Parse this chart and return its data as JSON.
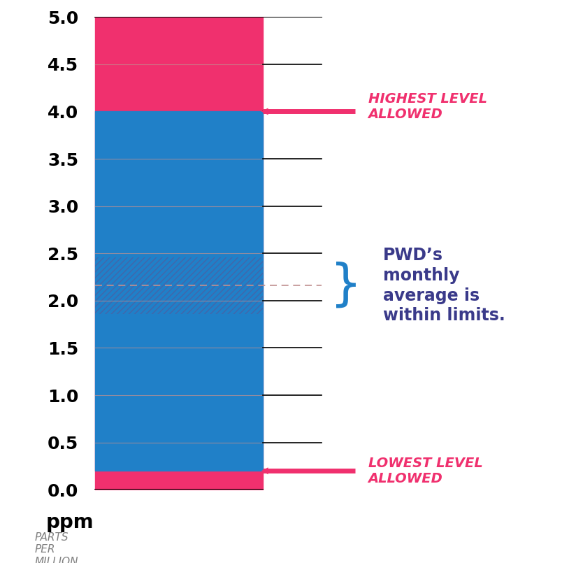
{
  "ylim": [
    0,
    5.0
  ],
  "yticks": [
    0.0,
    0.5,
    1.0,
    1.5,
    2.0,
    2.5,
    3.0,
    3.5,
    4.0,
    4.5,
    5.0
  ],
  "blue_color": "#2080c8",
  "pink_color": "#f0306e",
  "lowest_level": 0.2,
  "highest_level": 4.0,
  "pwd_low": 1.86,
  "pwd_high": 2.46,
  "dashed_line_y": 2.16,
  "grid_color": "#c09090",
  "highest_label": "HIGHEST LEVEL\nALLOWED",
  "lowest_label": "LOWEST LEVEL\nALLOWED",
  "pwd_label": "PWD’s\nmonthly\naverage is\nwithin limits.",
  "ppm_label": "ppm",
  "parts_label": "PARTS\nPER\nMILLION",
  "arrow_color": "#f0306e",
  "label_color_pink": "#f0306e",
  "label_color_blue": "#3a3a8a",
  "bracket_color": "#2080c8",
  "figsize": [
    8.24,
    8.05
  ],
  "dpi": 100
}
